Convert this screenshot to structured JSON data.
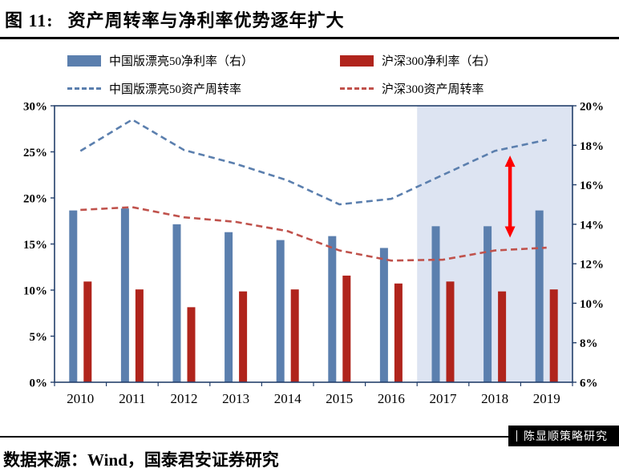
{
  "header": {
    "figure_label": "图 11:",
    "title": "资产周转率与净利率优势逐年扩大"
  },
  "legend": [
    {
      "type": "bar",
      "color": "#5b7fae",
      "label": "中国版漂亮50净利率（右）"
    },
    {
      "type": "bar",
      "color": "#b0241c",
      "label": "沪深300净利率（右）"
    },
    {
      "type": "line",
      "color": "#5b7fae",
      "label": "中国版漂亮50资产周转率"
    },
    {
      "type": "line",
      "color": "#c0524c",
      "label": "沪深300资产周转率"
    }
  ],
  "chart_data": {
    "type": "bar+line",
    "categories": [
      "2010",
      "2011",
      "2012",
      "2013",
      "2014",
      "2015",
      "2016",
      "2017",
      "2018",
      "2019"
    ],
    "left_axis": {
      "min": 0,
      "max": 30,
      "ticks": [
        "0%",
        "5%",
        "10%",
        "15%",
        "20%",
        "25%",
        "30%"
      ]
    },
    "right_axis": {
      "min": 6,
      "max": 20,
      "ticks": [
        "6%",
        "8%",
        "10%",
        "12%",
        "14%",
        "16%",
        "18%",
        "20%"
      ]
    },
    "series": [
      {
        "name": "中国版漂亮50净利率（右）",
        "type": "bar",
        "axis": "right",
        "color": "#5b7fae",
        "values": [
          14.7,
          14.8,
          14.0,
          13.6,
          13.2,
          13.4,
          12.8,
          13.9,
          13.9,
          14.7
        ]
      },
      {
        "name": "沪深300净利率（右）",
        "type": "bar",
        "axis": "right",
        "color": "#b0241c",
        "values": [
          11.1,
          10.7,
          9.8,
          10.6,
          10.7,
          11.4,
          11.0,
          11.1,
          10.6,
          10.7
        ]
      },
      {
        "name": "中国版漂亮50资产周转率",
        "type": "line",
        "axis": "left",
        "color": "#5b7fae",
        "values": [
          25.1,
          28.5,
          25.2,
          23.7,
          21.9,
          19.3,
          19.9,
          22.5,
          25.1,
          26.3
        ]
      },
      {
        "name": "沪深300资产周转率",
        "type": "line",
        "axis": "left",
        "color": "#c0524c",
        "values": [
          18.7,
          19.0,
          17.9,
          17.4,
          16.4,
          14.3,
          13.2,
          13.3,
          14.3,
          14.6
        ]
      }
    ],
    "highlight_region": {
      "from_boundary": 7,
      "color": "#dde4f2"
    },
    "annotation_arrow": {
      "category_index": 8,
      "x_offset": 19,
      "top_value_left_axis": 24.6,
      "bottom_value_left_axis": 15.7,
      "color": "#fe0000"
    },
    "frame_color": "#24406b",
    "grid": false,
    "legend_position": "top"
  },
  "footer": {
    "source": "数据来源：Wind，国泰君安证券研究",
    "badge": "陈显顺策略研究"
  }
}
